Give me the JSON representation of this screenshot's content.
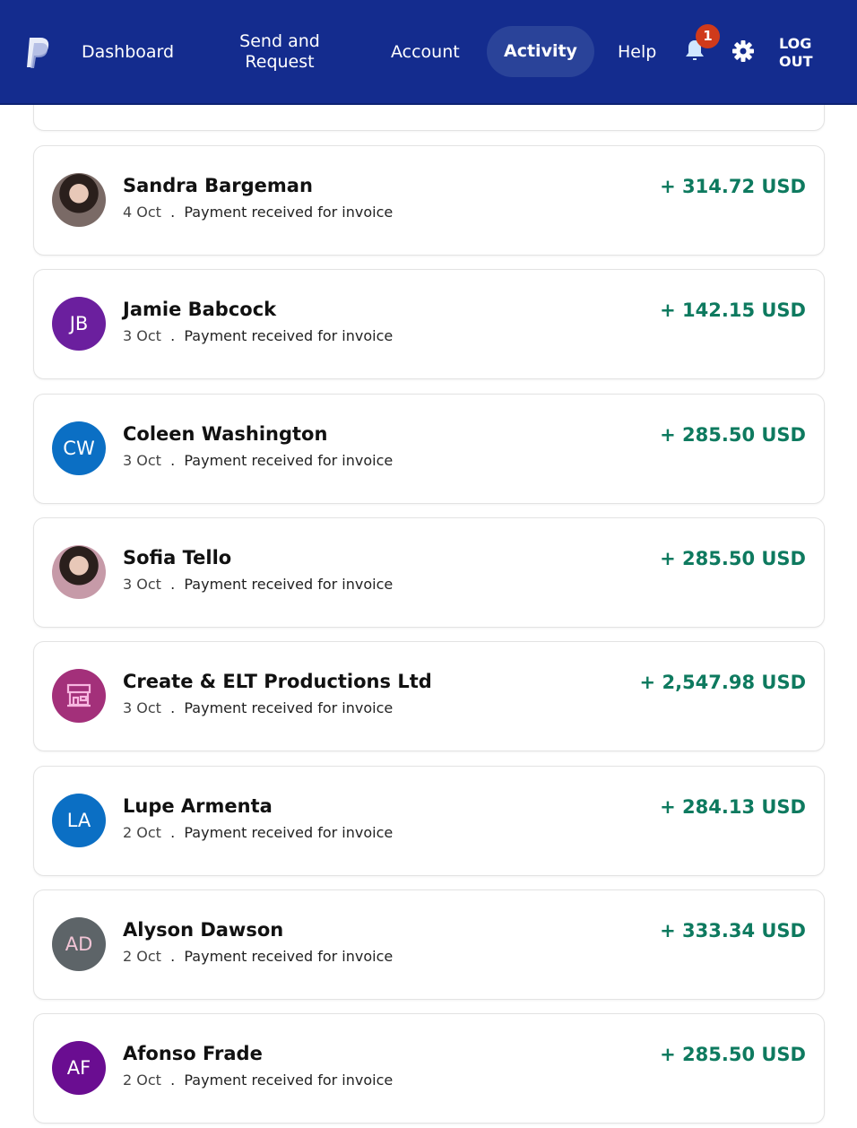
{
  "nav": {
    "dashboard": "Dashboard",
    "send_request": "Send and Request",
    "account": "Account",
    "activity": "Activity",
    "help": "Help",
    "notification_count": "1",
    "logout": "LOG OUT"
  },
  "colors": {
    "header": "#142c8e",
    "amount": "#0e7a5f",
    "badge": "#d03a1b"
  },
  "transactions": [
    {
      "name": "Sandra Bargeman",
      "date": "4 Oct",
      "desc": "Payment received for invoice",
      "amount": "+ 314.72 USD",
      "avatar": "photo",
      "avatar_color": "#7a6a66"
    },
    {
      "name": "Jamie Babcock",
      "date": "3 Oct",
      "desc": "Payment received for invoice",
      "amount": "+ 142.15 USD",
      "initials": "JB",
      "avatar_color": "#6b1f9e"
    },
    {
      "name": "Coleen Washington",
      "date": "3 Oct",
      "desc": "Payment received for invoice",
      "amount": "+ 285.50 USD",
      "initials": "CW",
      "avatar_color": "#0b6fc4"
    },
    {
      "name": "Sofia Tello",
      "date": "3 Oct",
      "desc": "Payment received for invoice",
      "amount": "+ 285.50 USD",
      "avatar": "photo",
      "avatar_color": "#c69aa8"
    },
    {
      "name": "Create & ELT Productions Ltd",
      "date": "3 Oct",
      "desc": "Payment received for invoice",
      "amount": "+ 2,547.98 USD",
      "avatar": "store-icon",
      "avatar_color": "#a3307a"
    },
    {
      "name": "Lupe Armenta",
      "date": "2 Oct",
      "desc": "Payment received for invoice",
      "amount": "+ 284.13 USD",
      "initials": "LA",
      "avatar_color": "#0b6fc4"
    },
    {
      "name": "Alyson Dawson",
      "date": "2 Oct",
      "desc": "Payment received for invoice",
      "amount": "+ 333.34 USD",
      "initials": "AD",
      "avatar_color": "#5d6468"
    },
    {
      "name": "Afonso Frade",
      "date": "2 Oct",
      "desc": "Payment received for invoice",
      "amount": "+ 285.50 USD",
      "initials": "AF",
      "avatar_color": "#6a0d91"
    }
  ]
}
